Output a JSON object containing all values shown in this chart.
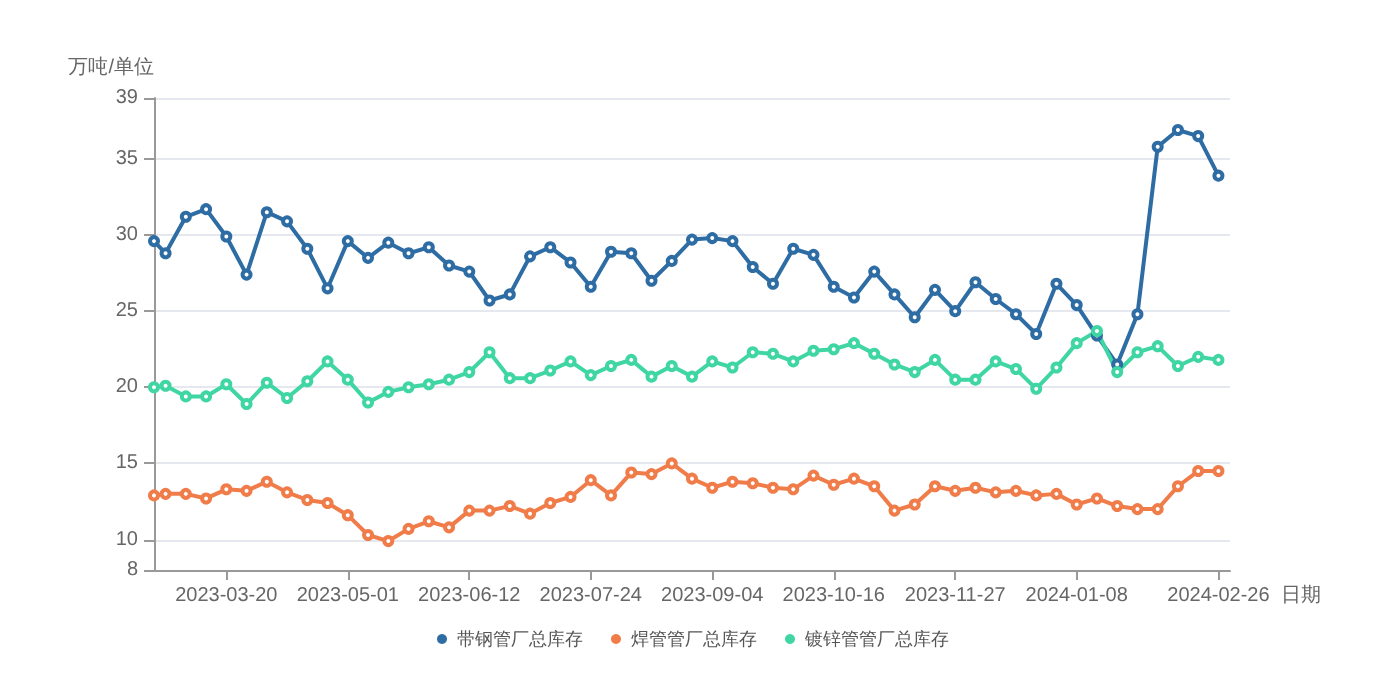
{
  "chart_data": {
    "type": "line",
    "ylabel": "万吨/单位",
    "xlabel": "日期",
    "x": [
      "2023-02-23",
      "2023-02-27",
      "2023-03-06",
      "2023-03-13",
      "2023-03-20",
      "2023-03-27",
      "2023-04-03",
      "2023-04-10",
      "2023-04-17",
      "2023-04-24",
      "2023-05-01",
      "2023-05-08",
      "2023-05-15",
      "2023-05-22",
      "2023-05-29",
      "2023-06-05",
      "2023-06-12",
      "2023-06-19",
      "2023-06-26",
      "2023-07-03",
      "2023-07-10",
      "2023-07-17",
      "2023-07-24",
      "2023-07-31",
      "2023-08-07",
      "2023-08-14",
      "2023-08-21",
      "2023-08-28",
      "2023-09-04",
      "2023-09-11",
      "2023-09-18",
      "2023-09-25",
      "2023-10-02",
      "2023-10-09",
      "2023-10-16",
      "2023-10-23",
      "2023-10-30",
      "2023-11-06",
      "2023-11-13",
      "2023-11-20",
      "2023-11-27",
      "2023-12-04",
      "2023-12-11",
      "2023-12-18",
      "2023-12-25",
      "2024-01-01",
      "2024-01-08",
      "2024-01-15",
      "2024-01-22",
      "2024-01-29",
      "2024-02-05",
      "2024-02-12",
      "2024-02-19",
      "2024-02-26"
    ],
    "series": [
      {
        "name": "带钢管厂总库存",
        "color": "#2e6ca4",
        "values": [
          29.6,
          28.8,
          31.2,
          31.7,
          29.9,
          27.4,
          31.5,
          30.9,
          29.1,
          26.5,
          29.6,
          28.5,
          29.5,
          28.8,
          29.2,
          28.0,
          27.6,
          25.7,
          26.1,
          28.6,
          29.2,
          28.2,
          26.6,
          28.9,
          28.8,
          27.0,
          28.3,
          29.7,
          29.8,
          29.6,
          27.9,
          26.8,
          29.1,
          28.7,
          26.6,
          25.9,
          27.6,
          26.1,
          24.6,
          26.4,
          25.0,
          26.9,
          25.8,
          24.8,
          23.5,
          26.8,
          25.4,
          23.4,
          21.5,
          24.8,
          35.8,
          36.9,
          36.5,
          33.9
        ]
      },
      {
        "name": "焊管管厂总库存",
        "color": "#f07c4a",
        "values": [
          12.9,
          13.0,
          13.0,
          12.7,
          13.3,
          13.2,
          13.8,
          13.1,
          12.6,
          12.4,
          11.6,
          10.3,
          9.9,
          10.7,
          11.2,
          10.8,
          11.9,
          11.9,
          12.2,
          11.7,
          12.4,
          12.8,
          13.9,
          12.9,
          14.4,
          14.3,
          15.0,
          14.0,
          13.4,
          13.8,
          13.7,
          13.4,
          13.3,
          14.2,
          13.6,
          14.0,
          13.5,
          11.9,
          12.3,
          13.5,
          13.2,
          13.4,
          13.1,
          13.2,
          12.9,
          13.0,
          12.3,
          12.7,
          12.2,
          12.0,
          12.0,
          13.5,
          14.5,
          14.5
        ]
      },
      {
        "name": "镀锌管管厂总库存",
        "color": "#3fd6a3",
        "values": [
          20.0,
          20.1,
          19.4,
          19.4,
          20.2,
          18.9,
          20.3,
          19.3,
          20.4,
          21.7,
          20.5,
          19.0,
          19.7,
          20.0,
          20.2,
          20.5,
          21.0,
          22.3,
          20.6,
          20.6,
          21.1,
          21.7,
          20.8,
          21.4,
          21.8,
          20.7,
          21.4,
          20.7,
          21.7,
          21.3,
          22.3,
          22.2,
          21.7,
          22.4,
          22.5,
          22.9,
          22.2,
          21.5,
          21.0,
          21.8,
          20.5,
          20.5,
          21.7,
          21.2,
          19.9,
          21.3,
          22.9,
          23.7,
          21.0,
          22.3,
          22.7,
          21.4,
          22.0,
          21.8
        ]
      }
    ],
    "xlim": [
      "2023-02-23",
      "2024-03-01"
    ],
    "xticks": [
      "2023-03-20",
      "2023-05-01",
      "2023-06-12",
      "2023-07-24",
      "2023-09-04",
      "2023-10-16",
      "2023-11-27",
      "2024-01-08",
      "2024-02-26"
    ],
    "ylim": [
      8,
      39
    ],
    "yticks": [
      8,
      10,
      15,
      20,
      25,
      30,
      35,
      39
    ],
    "grid": "y",
    "legend": "bottom",
    "marker": "circle",
    "line_style": "solid"
  }
}
